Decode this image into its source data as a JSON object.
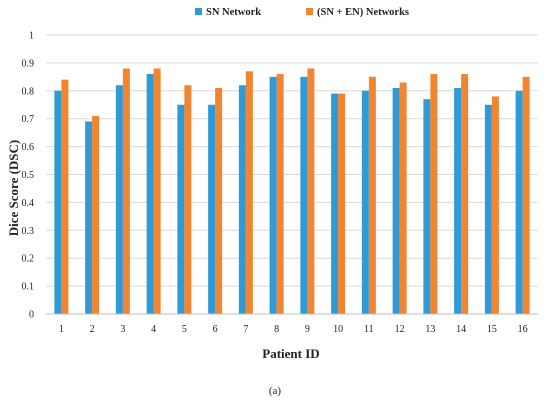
{
  "chart_data": {
    "type": "bar",
    "title": "",
    "xlabel": "Patient ID",
    "ylabel": "Dice Score (DSC)",
    "ylim": [
      0,
      1
    ],
    "yticks": [
      "0",
      "0.1",
      "0.2",
      "0.3",
      "0.4",
      "0.5",
      "0.6",
      "0.7",
      "0.8",
      "0.9",
      "1"
    ],
    "grid": "horizontal",
    "legend_position": "top-center",
    "categories": [
      "1",
      "2",
      "3",
      "4",
      "5",
      "6",
      "7",
      "8",
      "9",
      "10",
      "11",
      "12",
      "13",
      "14",
      "15",
      "16"
    ],
    "series": [
      {
        "name": "SN Network",
        "color": "#2E9BD6",
        "values": [
          0.8,
          0.69,
          0.82,
          0.86,
          0.75,
          0.75,
          0.82,
          0.85,
          0.85,
          0.79,
          0.8,
          0.81,
          0.77,
          0.81,
          0.75,
          0.8
        ]
      },
      {
        "name": "(SN + EN) Networks",
        "color": "#F28530",
        "values": [
          0.84,
          0.71,
          0.88,
          0.88,
          0.82,
          0.81,
          0.87,
          0.86,
          0.88,
          0.79,
          0.85,
          0.83,
          0.86,
          0.86,
          0.78,
          0.85
        ]
      }
    ]
  },
  "caption": "(a)"
}
